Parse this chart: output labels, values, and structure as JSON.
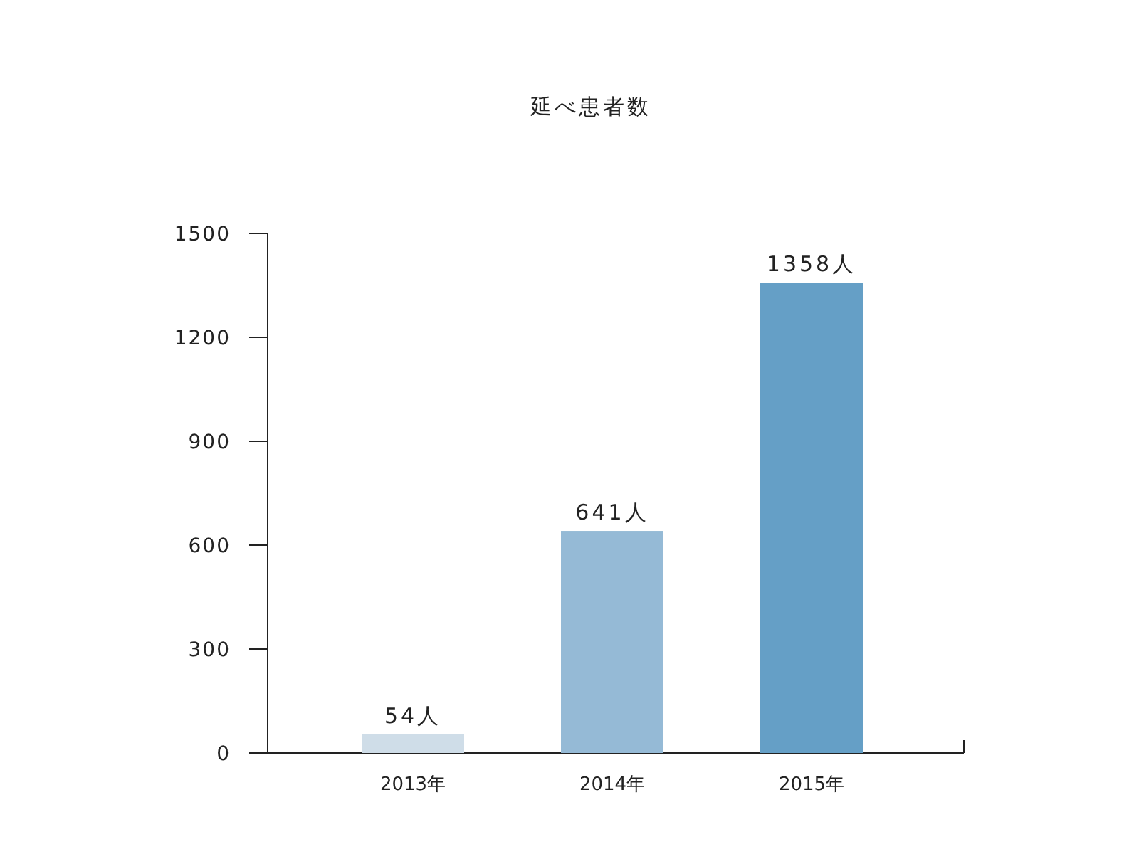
{
  "chart_data": {
    "type": "bar",
    "title": "延べ患者数",
    "categories": [
      "2013年",
      "2014年",
      "2015年"
    ],
    "values": [
      54,
      641,
      1358
    ],
    "colors": [
      "#cfdde8",
      "#95bad6",
      "#659fc6"
    ],
    "value_labels": [
      "54人",
      "641人",
      "1358人"
    ],
    "ylim": [
      0,
      1500
    ],
    "yticks": [
      0,
      300,
      600,
      900,
      1200,
      1500
    ]
  }
}
